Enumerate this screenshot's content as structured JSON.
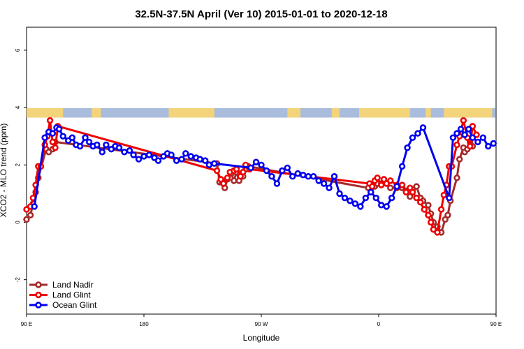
{
  "chart_data": {
    "type": "line",
    "title": "32.5N-37.5N April (Ver 10)   2015-01-01 to 2020-12-18",
    "xlabel": "Longitude",
    "ylabel": "XCO2 - MLO trend (ppm)",
    "xlim": [
      90,
      450
    ],
    "ylim": [
      -3.2,
      6.8
    ],
    "x_ticks": [
      {
        "value": 90,
        "label": "90 E"
      },
      {
        "value": 180,
        "label": "180"
      },
      {
        "value": 270,
        "label": "90 W"
      },
      {
        "value": 360,
        "label": "0"
      },
      {
        "value": 450,
        "label": "90 E"
      }
    ],
    "y_ticks": [
      {
        "value": -2,
        "label": "-2"
      },
      {
        "value": 0,
        "label": "0"
      },
      {
        "value": 2,
        "label": "2"
      },
      {
        "value": 4,
        "label": "4"
      },
      {
        "value": 6,
        "label": "6"
      }
    ],
    "grid": false,
    "legend_position": "bottom-left",
    "landmask_band": {
      "y_range": [
        3.65,
        3.98
      ],
      "ocean_color": "#a9bcdc",
      "land_color": "#f3d47a",
      "land_segments": [
        [
          90,
          114
        ],
        [
          102,
          104
        ],
        [
          110,
          118
        ],
        [
          140,
          147
        ],
        [
          199,
          234
        ],
        [
          290,
          300
        ],
        [
          324,
          330
        ],
        [
          345,
          384
        ],
        [
          396,
          400
        ],
        [
          410,
          447
        ]
      ]
    },
    "series": [
      {
        "name": "Land Nadir",
        "color": "#a52a2a",
        "x": [
          90,
          93,
          95,
          97,
          99,
          105,
          107,
          110,
          112,
          236,
          238,
          240,
          242,
          244,
          247,
          249,
          251,
          253,
          256,
          258,
          260,
          352,
          354,
          357,
          359,
          362,
          364,
          369,
          374,
          378,
          381,
          384,
          386,
          389,
          392,
          394,
          398,
          400,
          402,
          405,
          408,
          411,
          413,
          415,
          420,
          422,
          425,
          426,
          428,
          430,
          432
        ],
        "y": [
          0.1,
          0.25,
          0.65,
          1.05,
          1.55,
          2.55,
          2.45,
          2.55,
          2.8,
          2.05,
          1.4,
          1.4,
          1.2,
          1.5,
          1.7,
          1.45,
          1.75,
          1.45,
          1.6,
          1.85,
          1.95,
          1.2,
          1.05,
          1.25,
          1.35,
          1.35,
          1.4,
          1.2,
          1.2,
          1.2,
          1.1,
          0.9,
          1.15,
          1.25,
          0.85,
          0.75,
          0.6,
          0.3,
          0.0,
          -0.15,
          -0.35,
          0.1,
          0.25,
          0.75,
          1.55,
          2.2,
          2.6,
          2.45,
          2.55,
          2.8,
          2.65
        ],
        "values_note": ""
      },
      {
        "name": "Land Glint",
        "color": "#ee0000",
        "x": [
          90,
          93,
          95,
          97,
          99,
          101,
          104,
          106,
          108,
          110,
          112,
          114,
          236,
          239,
          241,
          244,
          246,
          249,
          251,
          254,
          256,
          258,
          261,
          353,
          355,
          357,
          359,
          362,
          364,
          366,
          369,
          374,
          378,
          381,
          384,
          386,
          389,
          392,
          395,
          398,
          400,
          402,
          405,
          408,
          410,
          412,
          414,
          416,
          420,
          422,
          425,
          428,
          430,
          432,
          435
        ],
        "y": [
          0.45,
          0.55,
          0.85,
          1.3,
          1.95,
          1.95,
          2.7,
          3.0,
          3.55,
          2.8,
          2.6,
          3.35,
          1.8,
          1.5,
          1.35,
          1.55,
          1.75,
          1.8,
          1.85,
          1.6,
          1.75,
          2.0,
          1.85,
          1.35,
          1.25,
          1.45,
          1.55,
          1.3,
          1.5,
          1.35,
          1.45,
          1.3,
          1.3,
          1.05,
          1.2,
          1.05,
          0.85,
          0.7,
          0.45,
          0.25,
          0.0,
          -0.25,
          -0.35,
          0.45,
          0.95,
          1.3,
          1.95,
          1.95,
          2.7,
          3.0,
          3.55,
          2.95,
          2.65,
          3.35,
          3.05
        ],
        "values_note": ""
      },
      {
        "name": "Ocean Glint",
        "color": "#0000ee",
        "x": [
          96,
          104,
          107,
          110,
          113,
          115,
          118,
          122,
          125,
          128,
          131,
          135,
          138,
          141,
          144,
          148,
          151,
          155,
          158,
          161,
          165,
          169,
          172,
          176,
          180,
          184,
          188,
          191,
          195,
          198,
          201,
          205,
          209,
          212,
          216,
          220,
          223,
          227,
          230,
          234,
          262,
          266,
          270,
          274,
          278,
          282,
          286,
          290,
          294,
          298,
          302,
          306,
          310,
          314,
          318,
          322,
          326,
          330,
          334,
          338,
          342,
          346,
          350,
          354,
          358,
          362,
          366,
          370,
          374,
          378,
          382,
          386,
          390,
          394,
          414,
          417,
          420,
          423,
          426,
          429,
          432,
          436,
          440,
          444,
          448
        ],
        "y": [
          0.55,
          2.95,
          3.15,
          3.1,
          3.3,
          3.25,
          3.0,
          2.85,
          2.95,
          2.7,
          2.65,
          2.95,
          2.8,
          2.65,
          2.7,
          2.45,
          2.7,
          2.55,
          2.65,
          2.6,
          2.45,
          2.5,
          2.35,
          2.2,
          2.3,
          2.35,
          2.25,
          2.15,
          2.3,
          2.4,
          2.35,
          2.15,
          2.2,
          2.4,
          2.3,
          2.25,
          2.2,
          2.15,
          2.0,
          2.05,
          1.9,
          2.1,
          2.0,
          1.8,
          1.6,
          1.35,
          1.8,
          1.9,
          1.6,
          1.7,
          1.65,
          1.6,
          1.6,
          1.45,
          1.35,
          1.2,
          1.6,
          1.0,
          0.85,
          0.75,
          0.65,
          0.55,
          0.85,
          1.05,
          0.85,
          0.6,
          0.55,
          0.85,
          1.25,
          1.95,
          2.6,
          2.95,
          3.1,
          3.3,
          0.85,
          2.95,
          3.1,
          3.25,
          3.05,
          3.25,
          2.95,
          2.8,
          2.95,
          2.65,
          2.75
        ],
        "values_note": ""
      }
    ]
  }
}
